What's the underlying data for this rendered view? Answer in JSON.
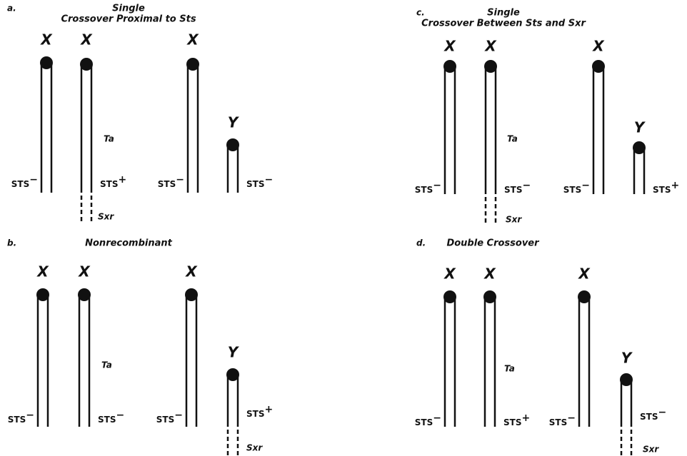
{
  "panels": [
    {
      "letter": "a.",
      "title": [
        "Single",
        "Crossover Proximal to Sts"
      ],
      "chromosomes": [
        "X",
        "X",
        "X",
        "Y"
      ],
      "ta": "Ta",
      "sts": [
        {
          "text": "STS",
          "sign": "−"
        },
        {
          "text": "STS",
          "sign": "+"
        },
        {
          "text": "STS",
          "sign": "−"
        },
        {
          "text": "STS",
          "sign": "−"
        }
      ],
      "sxr": "Sxr"
    },
    {
      "letter": "b.",
      "title": [
        "Nonrecombinant"
      ],
      "chromosomes": [
        "X",
        "X",
        "X",
        "Y"
      ],
      "ta": "Ta",
      "sts": [
        {
          "text": "STS",
          "sign": "−"
        },
        {
          "text": "STS",
          "sign": "−"
        },
        {
          "text": "STS",
          "sign": "−"
        },
        {
          "text": "STS",
          "sign": "+"
        }
      ],
      "sxr": "Sxr"
    },
    {
      "letter": "c.",
      "title": [
        "Single",
        "Crossover Between Sts and Sxr"
      ],
      "chromosomes": [
        "X",
        "X",
        "X",
        "Y"
      ],
      "ta": "Ta",
      "sts": [
        {
          "text": "STS",
          "sign": "−"
        },
        {
          "text": "STS",
          "sign": "−"
        },
        {
          "text": "STS",
          "sign": "−"
        },
        {
          "text": "STS",
          "sign": "+"
        }
      ],
      "sxr": "Sxr"
    },
    {
      "letter": "d.",
      "title": [
        "Double Crossover"
      ],
      "chromosomes": [
        "X",
        "X",
        "X",
        "Y"
      ],
      "ta": "Ta",
      "sts": [
        {
          "text": "STS",
          "sign": "−"
        },
        {
          "text": "STS",
          "sign": "+"
        },
        {
          "text": "STS",
          "sign": "−"
        },
        {
          "text": "STS",
          "sign": "−"
        }
      ],
      "sxr": "Sxr"
    }
  ]
}
